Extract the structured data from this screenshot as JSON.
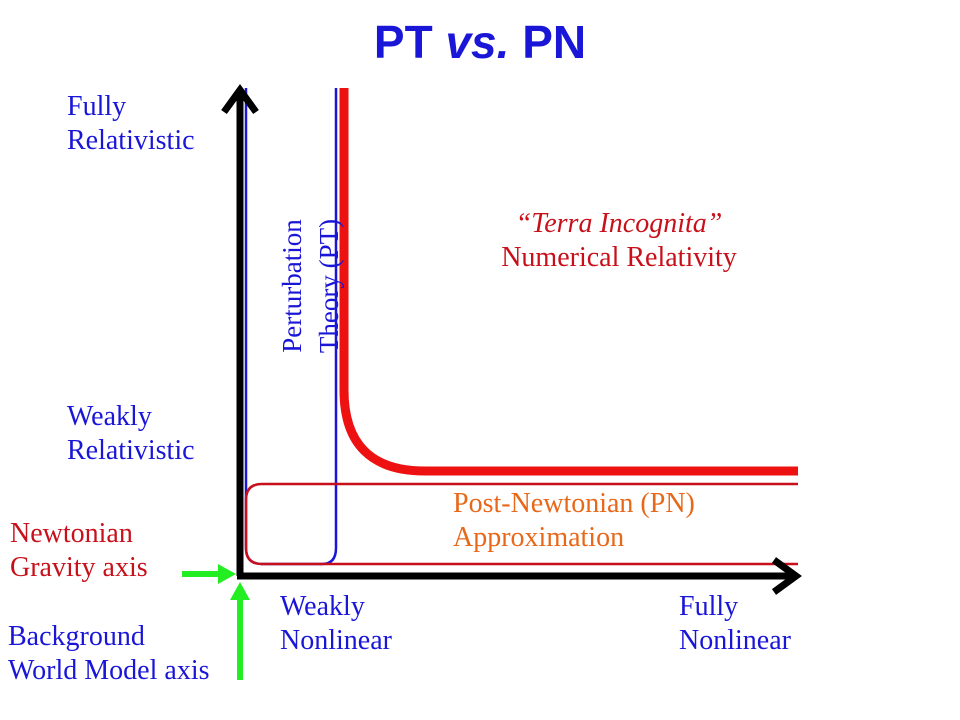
{
  "title": {
    "main": "PT",
    "vs": "vs.",
    "rest": "PN"
  },
  "y_axis": {
    "top_label": [
      "Fully",
      "Relativistic"
    ],
    "mid_label": [
      "Weakly",
      "Relativistic"
    ]
  },
  "x_axis": {
    "left_label": [
      "Weakly",
      "Nonlinear"
    ],
    "right_label": [
      "Fully",
      "Nonlinear"
    ]
  },
  "regions": {
    "pt": [
      "Perturbation",
      "Theory (PT)"
    ],
    "nr": {
      "quoted": "“Terra Incognita”",
      "name": "Numerical Relativity"
    },
    "pn": [
      "Post-Newtonian (PN)",
      "Approximation"
    ]
  },
  "axes_names": {
    "newtonian": [
      "Newtonian",
      "Gravity axis"
    ],
    "background": [
      "Background",
      "World Model axis"
    ]
  },
  "colors": {
    "blue": "#1a16d8",
    "red": "#c8101a",
    "orange": "#e8681a",
    "green": "#22ee22",
    "black": "#000000"
  }
}
